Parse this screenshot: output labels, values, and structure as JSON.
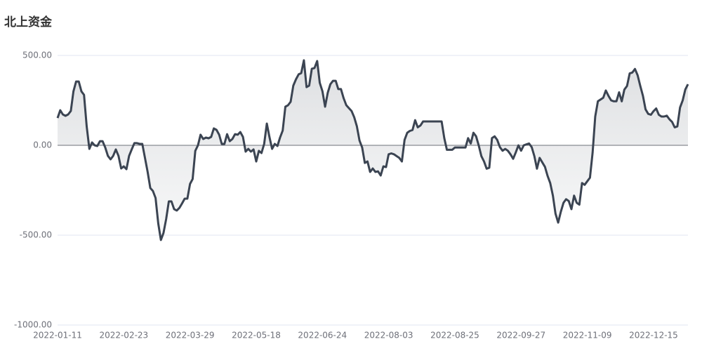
{
  "chart_data": {
    "type": "area",
    "title": "北上资金",
    "categories": [
      "2022-01-11",
      null,
      null,
      null,
      null,
      null,
      null,
      null,
      null,
      null,
      null,
      null,
      null,
      null,
      null,
      null,
      null,
      null,
      null,
      null,
      null,
      null,
      null,
      null,
      null,
      "2022-02-23",
      null,
      null,
      null,
      null,
      null,
      null,
      null,
      null,
      null,
      null,
      null,
      null,
      null,
      null,
      null,
      null,
      null,
      null,
      null,
      null,
      null,
      null,
      null,
      null,
      "2022-03-29",
      null,
      null,
      null,
      null,
      null,
      null,
      null,
      null,
      null,
      null,
      null,
      null,
      null,
      null,
      null,
      null,
      null,
      null,
      null,
      null,
      null,
      null,
      null,
      null,
      "2022-05-18",
      null,
      null,
      null,
      null,
      null,
      null,
      null,
      null,
      null,
      null,
      null,
      null,
      null,
      null,
      null,
      null,
      null,
      null,
      null,
      null,
      null,
      null,
      null,
      null,
      "2022-06-24",
      null,
      null,
      null,
      null,
      null,
      null,
      null,
      null,
      null,
      null,
      null,
      null,
      null,
      null,
      null,
      null,
      null,
      null,
      null,
      null,
      null,
      null,
      null,
      null,
      "2022-08-03",
      null,
      null,
      null,
      null,
      null,
      null,
      null,
      null,
      null,
      null,
      null,
      null,
      null,
      null,
      null,
      null,
      null,
      null,
      null,
      null,
      null,
      null,
      null,
      null,
      "2022-08-25",
      null,
      null,
      null,
      null,
      null,
      null,
      null,
      null,
      null,
      null,
      null,
      null,
      null,
      null,
      null,
      null,
      null,
      null,
      null,
      null,
      null,
      null,
      null,
      null,
      "2022-09-27",
      null,
      null,
      null,
      null,
      null,
      null,
      null,
      null,
      null,
      null,
      null,
      null,
      null,
      null,
      null,
      null,
      null,
      null,
      null,
      null,
      null,
      null,
      null,
      null,
      "2022-11-09",
      null,
      null,
      null,
      null,
      null,
      null,
      null,
      null,
      null,
      null,
      null,
      null,
      null,
      null,
      null,
      null,
      null,
      null,
      null,
      null,
      null,
      null,
      null,
      null,
      "2022-12-15",
      null,
      null,
      null,
      null,
      null,
      null,
      null,
      null,
      null,
      null,
      null,
      null,
      null
    ],
    "series": [
      {
        "color": "#3b4452",
        "values": [
          152,
          195,
          172,
          164,
          172,
          191,
          300,
          355,
          355,
          300,
          281,
          105,
          -20,
          16,
          0,
          -4,
          23,
          23,
          -12,
          -59,
          -78,
          -59,
          -23,
          -59,
          -129,
          -117,
          -133,
          -59,
          -23,
          12,
          12,
          8,
          8,
          -70,
          -148,
          -238,
          -254,
          -293,
          -434,
          -527,
          -488,
          -410,
          -312,
          -312,
          -355,
          -363,
          -348,
          -324,
          -297,
          -297,
          -215,
          -188,
          -31,
          0,
          59,
          35,
          43,
          39,
          47,
          94,
          86,
          59,
          8,
          8,
          62,
          23,
          35,
          62,
          59,
          74,
          47,
          -35,
          -20,
          -35,
          -23,
          -90,
          -31,
          -43,
          8,
          121,
          47,
          -20,
          8,
          -4,
          43,
          82,
          215,
          223,
          242,
          332,
          367,
          395,
          402,
          473,
          324,
          332,
          426,
          430,
          469,
          348,
          301,
          215,
          293,
          340,
          359,
          359,
          313,
          313,
          262,
          223,
          207,
          191,
          156,
          105,
          27,
          -12,
          -98,
          -90,
          -148,
          -129,
          -148,
          -145,
          -168,
          -117,
          -121,
          -50,
          -45,
          -50,
          -60,
          -70,
          -90,
          30,
          70,
          80,
          85,
          140,
          100,
          110,
          133,
          133,
          133,
          133,
          133,
          133,
          133,
          133,
          40,
          -25,
          -25,
          -25,
          -12,
          -12,
          -12,
          -12,
          -12,
          40,
          10,
          70,
          50,
          0,
          -60,
          -90,
          -130,
          -125,
          40,
          50,
          30,
          -10,
          -30,
          -20,
          -30,
          -50,
          -75,
          -40,
          0,
          -30,
          0,
          5,
          10,
          -10,
          -60,
          -130,
          -70,
          -95,
          -120,
          -170,
          -210,
          -280,
          -380,
          -430,
          -370,
          -320,
          -300,
          -310,
          -355,
          -280,
          -320,
          -330,
          -210,
          -220,
          -200,
          -180,
          -40,
          160,
          245,
          255,
          265,
          305,
          275,
          250,
          245,
          245,
          295,
          245,
          310,
          330,
          400,
          405,
          425,
          390,
          330,
          275,
          200,
          175,
          170,
          190,
          205,
          170,
          160,
          160,
          165,
          145,
          130,
          100,
          105,
          210,
          250,
          310,
          340
        ]
      }
    ],
    "ylim": [
      -1000,
      500
    ],
    "yticks": [
      {
        "value": -1000,
        "label": "-1000.00"
      },
      {
        "value": -500,
        "label": "-500.00"
      },
      {
        "value": 0,
        "label": "0.00"
      },
      {
        "value": 500,
        "label": "500.00"
      }
    ],
    "grid": true
  }
}
